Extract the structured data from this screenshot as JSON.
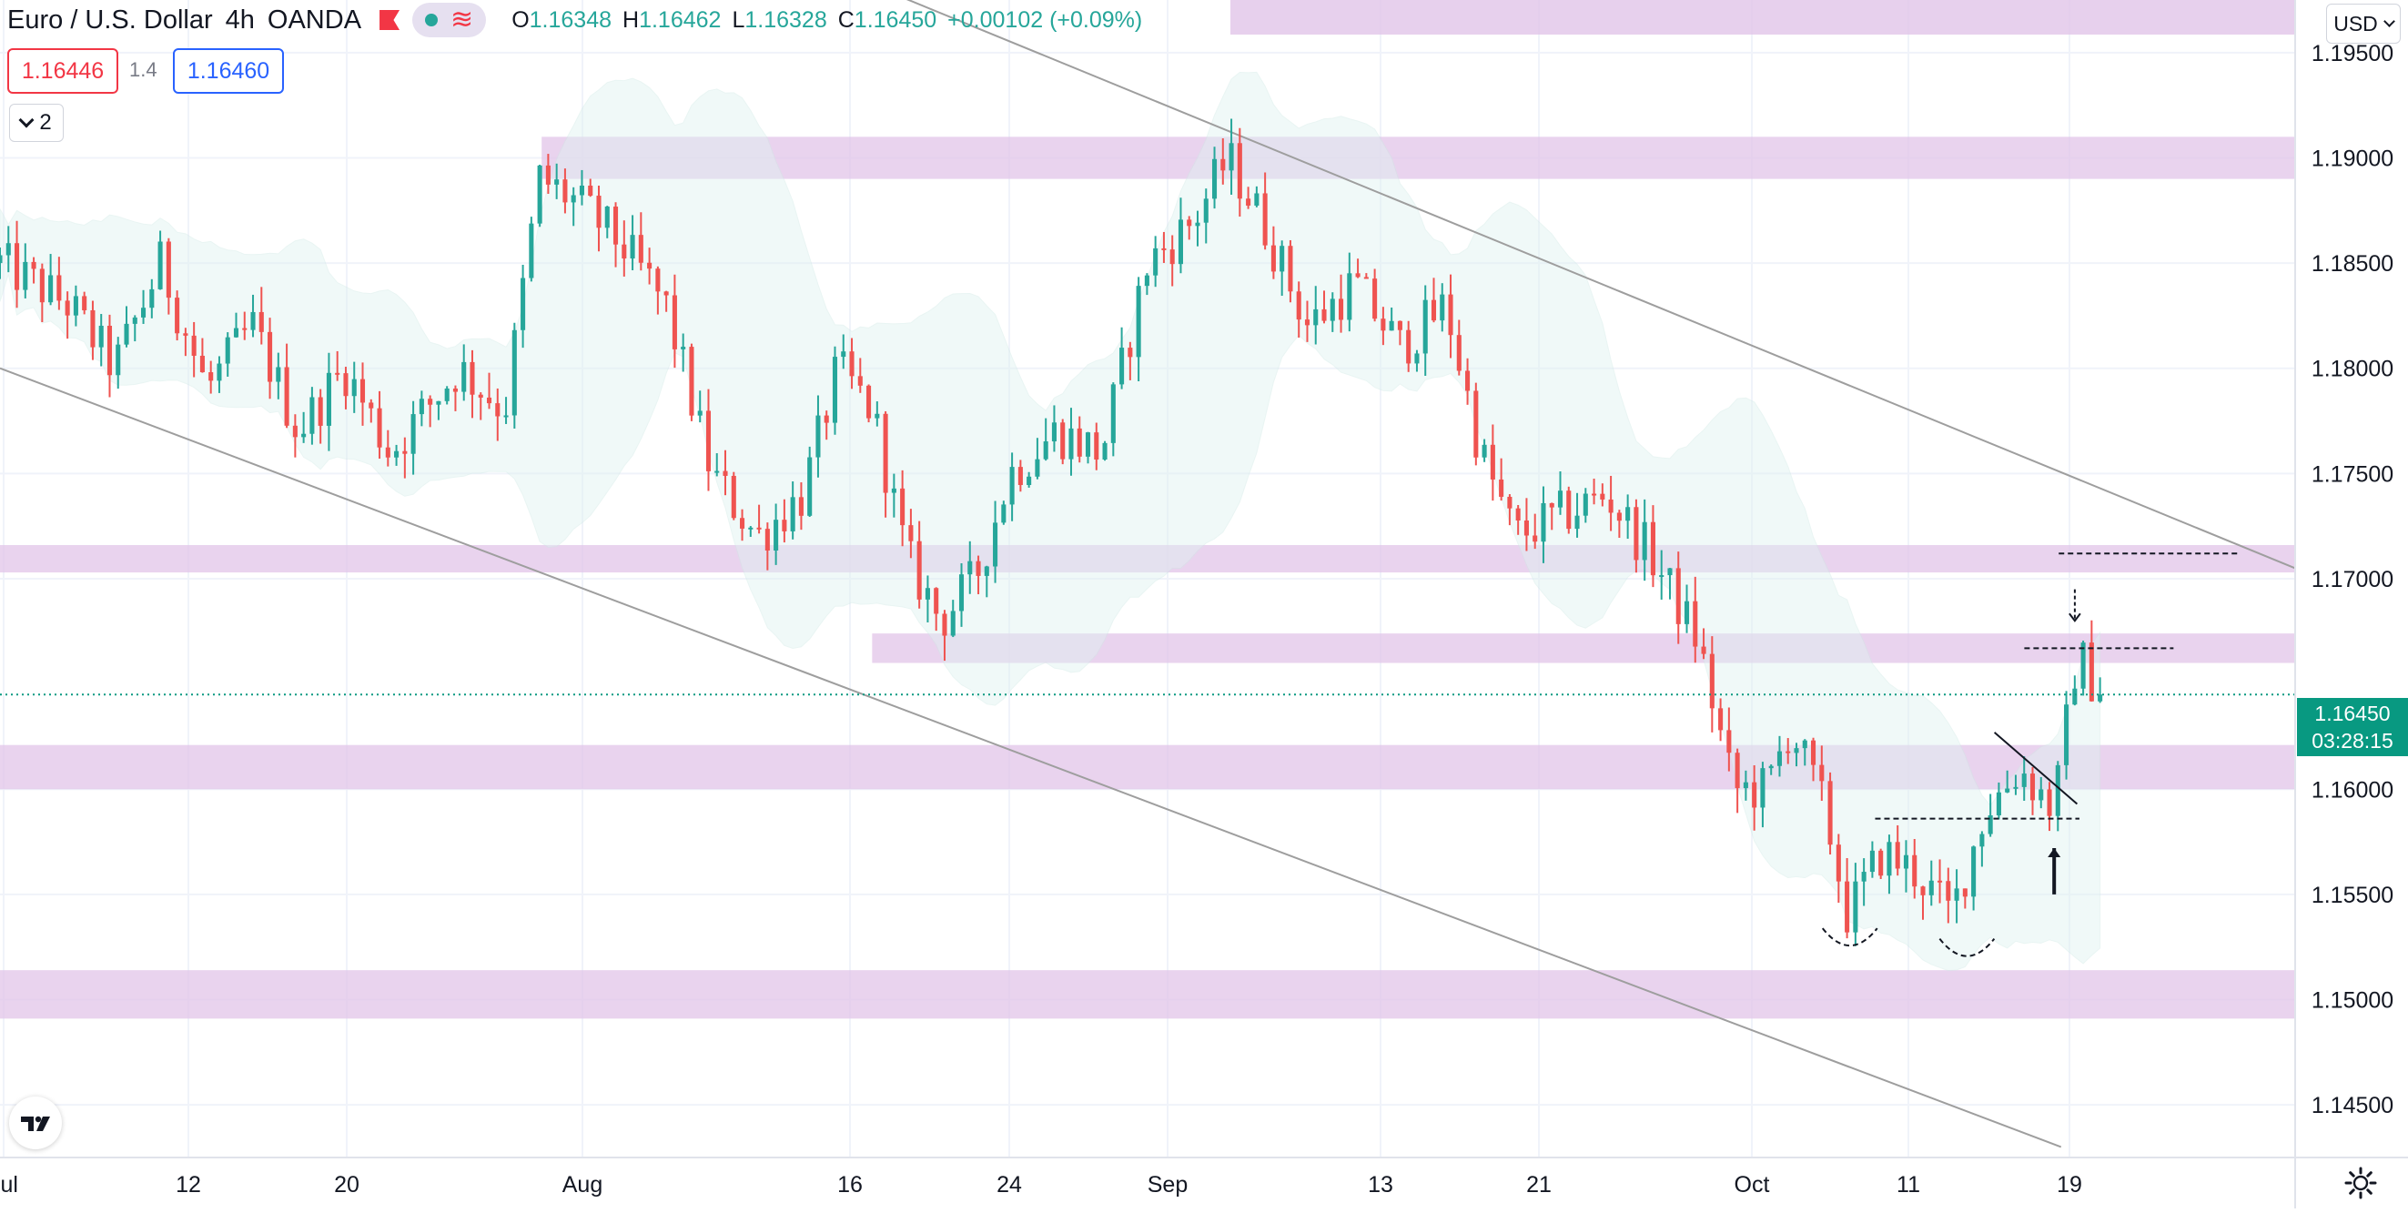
{
  "header": {
    "symbol": "Euro / U.S. Dollar",
    "interval": "4h",
    "exchange": "OANDA",
    "indicator_icons": [
      "eye-dot-icon",
      "wave-icon"
    ],
    "ohlc": {
      "open_label": "O",
      "open": "1.16348",
      "high_label": "H",
      "high": "1.16462",
      "low_label": "L",
      "low": "1.16328",
      "close_label": "C",
      "close": "1.16450",
      "change": "+0.00102 (+0.09%)"
    }
  },
  "trade": {
    "sell_price": "1.16446",
    "spread": "1.4",
    "buy_price": "1.16460"
  },
  "indicators_toggle": {
    "count": "2"
  },
  "price_scale": {
    "currency": "USD",
    "last_price": "1.16450",
    "countdown": "03:28:15",
    "ticks": [
      "1.19500",
      "1.19000",
      "1.18500",
      "1.18000",
      "1.17500",
      "1.17000",
      "1.16000",
      "1.15500",
      "1.15000",
      "1.14500"
    ]
  },
  "time_scale": {
    "labels": [
      "Jul",
      "12",
      "20",
      "Aug",
      "16",
      "24",
      "Sep",
      "13",
      "21",
      "Oct",
      "11",
      "19"
    ]
  },
  "colors": {
    "up": "#26a69a",
    "down": "#ef5350",
    "zone": "#e1c4e8",
    "bollinger_fill": "#e0f2f1",
    "trendline": "#9e9e9e",
    "last_price_bg": "#089981"
  },
  "chart_data": {
    "type": "candlestick",
    "instrument": "EUR/USD",
    "timeframe": "4h",
    "y_range": [
      1.1425,
      1.1975
    ],
    "path_points": [
      {
        "t": 0,
        "p": 1.185
      },
      {
        "t": 0.03,
        "p": 1.183
      },
      {
        "t": 0.05,
        "p": 1.18
      },
      {
        "t": 0.07,
        "p": 1.185
      },
      {
        "t": 0.09,
        "p": 1.179
      },
      {
        "t": 0.11,
        "p": 1.182
      },
      {
        "t": 0.13,
        "p": 1.177
      },
      {
        "t": 0.15,
        "p": 1.18
      },
      {
        "t": 0.17,
        "p": 1.176
      },
      {
        "t": 0.2,
        "p": 1.18
      },
      {
        "t": 0.22,
        "p": 1.178
      },
      {
        "t": 0.235,
        "p": 1.189
      },
      {
        "t": 0.25,
        "p": 1.188
      },
      {
        "t": 0.27,
        "p": 1.186
      },
      {
        "t": 0.29,
        "p": 1.183
      },
      {
        "t": 0.31,
        "p": 1.175
      },
      {
        "t": 0.33,
        "p": 1.172
      },
      {
        "t": 0.35,
        "p": 1.174
      },
      {
        "t": 0.365,
        "p": 1.18
      },
      {
        "t": 0.38,
        "p": 1.178
      },
      {
        "t": 0.395,
        "p": 1.171
      },
      {
        "t": 0.41,
        "p": 1.168
      },
      {
        "t": 0.425,
        "p": 1.17
      },
      {
        "t": 0.44,
        "p": 1.175
      },
      {
        "t": 0.46,
        "p": 1.177
      },
      {
        "t": 0.48,
        "p": 1.176
      },
      {
        "t": 0.5,
        "p": 1.185
      },
      {
        "t": 0.52,
        "p": 1.187
      },
      {
        "t": 0.535,
        "p": 1.19
      },
      {
        "t": 0.55,
        "p": 1.187
      },
      {
        "t": 0.57,
        "p": 1.182
      },
      {
        "t": 0.59,
        "p": 1.184
      },
      {
        "t": 0.61,
        "p": 1.181
      },
      {
        "t": 0.63,
        "p": 1.183
      },
      {
        "t": 0.645,
        "p": 1.176
      },
      {
        "t": 0.66,
        "p": 1.172
      },
      {
        "t": 0.68,
        "p": 1.173
      },
      {
        "t": 0.7,
        "p": 1.174
      },
      {
        "t": 0.72,
        "p": 1.171
      },
      {
        "t": 0.74,
        "p": 1.167
      },
      {
        "t": 0.755,
        "p": 1.16
      },
      {
        "t": 0.77,
        "p": 1.16
      },
      {
        "t": 0.78,
        "p": 1.163
      },
      {
        "t": 0.795,
        "p": 1.159
      },
      {
        "t": 0.805,
        "p": 1.154
      },
      {
        "t": 0.82,
        "p": 1.157
      },
      {
        "t": 0.835,
        "p": 1.156
      },
      {
        "t": 0.85,
        "p": 1.154
      },
      {
        "t": 0.865,
        "p": 1.159
      },
      {
        "t": 0.88,
        "p": 1.161
      },
      {
        "t": 0.895,
        "p": 1.159
      },
      {
        "t": 0.905,
        "p": 1.1665
      },
      {
        "t": 0.915,
        "p": 1.1645
      }
    ],
    "zones": [
      {
        "from": 1.189,
        "to": 1.191,
        "start": 0.236
      },
      {
        "from": 1.1703,
        "to": 1.1716,
        "start": 0
      },
      {
        "from": 1.166,
        "to": 1.1674,
        "start": 0.38
      },
      {
        "from": 1.16,
        "to": 1.1621,
        "start": 0
      },
      {
        "from": 1.1491,
        "to": 1.1514,
        "start": 0
      }
    ],
    "trendlines": [
      {
        "t1": 0.34,
        "p1": 1.2,
        "t2": 1.0,
        "p2": 1.1705
      },
      {
        "t1": 0.0,
        "p1": 1.18,
        "t2": 0.898,
        "p2": 1.143
      }
    ],
    "annotations": [
      {
        "kind": "dashed",
        "t1": 0.897,
        "t2": 0.975,
        "p": 1.1712
      },
      {
        "kind": "dashed",
        "t1": 0.882,
        "t2": 0.947,
        "p": 1.1667
      },
      {
        "kind": "dashed",
        "t1": 0.817,
        "t2": 0.906,
        "p": 1.1586
      },
      {
        "kind": "arrow-down",
        "t": 0.904,
        "p_from": 1.1695,
        "p_to": 1.168
      },
      {
        "kind": "arrow-up",
        "t": 0.895,
        "p_from": 1.155,
        "p_to": 1.1572
      },
      {
        "kind": "cup",
        "t": 0.806,
        "p": 1.1527
      },
      {
        "kind": "cup",
        "t": 0.857,
        "p": 1.1522
      },
      {
        "kind": "solid",
        "t1": 0.869,
        "p1": 1.1627,
        "t2": 0.905,
        "p2": 1.1593
      }
    ],
    "last_price": 1.1645
  }
}
